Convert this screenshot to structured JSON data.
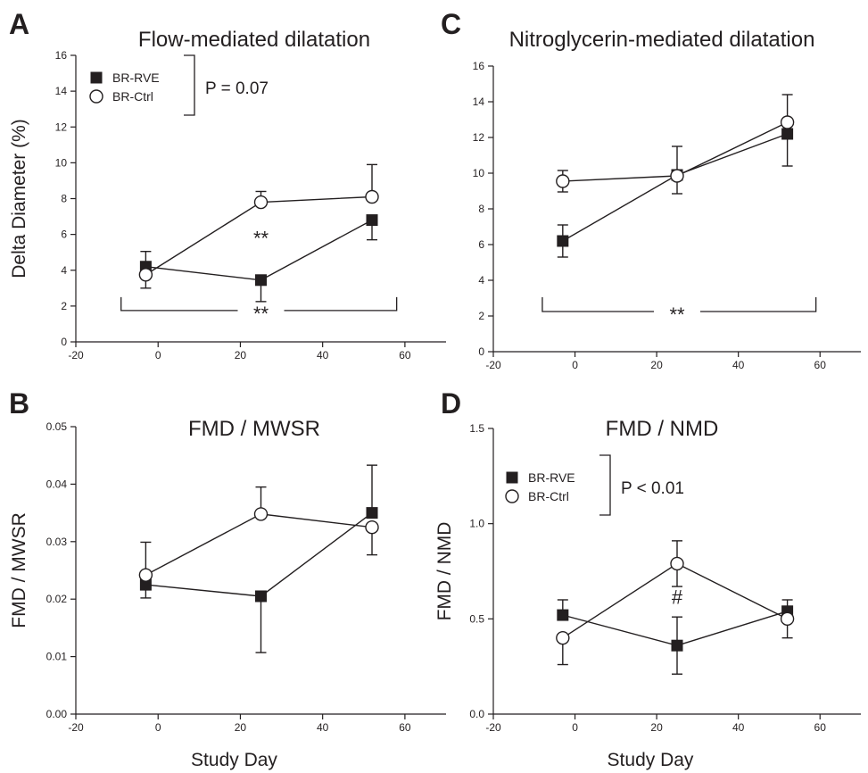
{
  "chart_data": [
    {
      "letter": "A",
      "title": "Flow-mediated dilatation",
      "type": "line",
      "ylabel": "Delta Diameter (%)",
      "xlabel": "",
      "xlim": [
        -20,
        70
      ],
      "ylim": [
        0,
        16
      ],
      "xticks": [
        -20,
        0,
        20,
        40,
        60
      ],
      "yticks": [
        0,
        2,
        4,
        6,
        8,
        10,
        12,
        14,
        16
      ],
      "ytick_labels": [
        "0",
        "2",
        "4",
        "6",
        "8",
        "10",
        "12",
        "14",
        "16"
      ],
      "series": [
        {
          "name": "BR-RVE",
          "marker": "filled-square",
          "x": [
            -3,
            25,
            52
          ],
          "y": [
            4.2,
            3.45,
            6.8
          ],
          "err_up": [
            0.85,
            0,
            0
          ],
          "err_down": [
            0,
            1.2,
            1.1
          ]
        },
        {
          "name": "BR-Ctrl",
          "marker": "open-circle",
          "x": [
            -3,
            25,
            52
          ],
          "y": [
            3.75,
            7.8,
            8.1
          ],
          "err_up": [
            0,
            0.6,
            1.8
          ],
          "err_down": [
            0.75,
            0,
            0
          ]
        }
      ],
      "legend": {
        "show": true,
        "position": "top-left",
        "stat_text": "P = 0.07"
      },
      "annotations": [
        {
          "text": "**",
          "x": 25,
          "y": 5.4
        },
        {
          "text": "**",
          "x": 25,
          "y": 0.75,
          "bracket_x": [
            -9,
            58
          ],
          "bracket_y": 1.75,
          "bracket_drop": 0.75
        }
      ]
    },
    {
      "letter": "C",
      "title": "Nitroglycerin-mediated dilatation",
      "type": "line",
      "ylabel": "",
      "xlabel": "",
      "xlim": [
        -20,
        70
      ],
      "ylim": [
        0,
        16
      ],
      "xticks": [
        -20,
        0,
        20,
        40,
        60
      ],
      "yticks": [
        0,
        2,
        4,
        6,
        8,
        10,
        12,
        14,
        16
      ],
      "ytick_labels": [
        "0",
        "2",
        "4",
        "6",
        "8",
        "10",
        "12",
        "14",
        "16"
      ],
      "series": [
        {
          "name": "BR-RVE",
          "marker": "filled-square",
          "x": [
            -3,
            25,
            52
          ],
          "y": [
            6.2,
            9.9,
            12.2
          ],
          "err_up": [
            0.9,
            1.6,
            0
          ],
          "err_down": [
            0.9,
            0,
            1.8
          ]
        },
        {
          "name": "BR-Ctrl",
          "marker": "open-circle",
          "x": [
            -3,
            25,
            52
          ],
          "y": [
            9.55,
            9.85,
            12.85
          ],
          "err_up": [
            0.6,
            0,
            1.55
          ],
          "err_down": [
            0.6,
            1.0,
            0
          ]
        }
      ],
      "legend": {
        "show": false
      },
      "annotations": [
        {
          "text": "**",
          "x": 25,
          "y": 1.8,
          "bracket_x": [
            -8,
            59
          ],
          "bracket_y": 2.25,
          "bracket_drop": 0.8
        }
      ]
    },
    {
      "letter": "B",
      "title": "FMD / MWSR",
      "type": "line",
      "ylabel": "FMD / MWSR",
      "xlabel": "Study Day",
      "xlim": [
        -20,
        70
      ],
      "ylim": [
        0,
        0.05
      ],
      "xticks": [
        -20,
        0,
        20,
        40,
        60
      ],
      "yticks": [
        0,
        0.01,
        0.02,
        0.03,
        0.04,
        0.05
      ],
      "ytick_labels": [
        "0.00",
        "0.01",
        "0.02",
        "0.03",
        "0.04",
        "0.05"
      ],
      "series": [
        {
          "name": "BR-RVE",
          "marker": "filled-square",
          "x": [
            -3,
            25,
            52
          ],
          "y": [
            0.0225,
            0.0205,
            0.035
          ],
          "err_up": [
            0,
            0,
            0.0083
          ],
          "err_down": [
            0.0023,
            0.0098,
            0
          ]
        },
        {
          "name": "BR-Ctrl",
          "marker": "open-circle",
          "x": [
            -3,
            25,
            52
          ],
          "y": [
            0.0242,
            0.0348,
            0.0325
          ],
          "err_up": [
            0.0057,
            0.0047,
            0
          ],
          "err_down": [
            0,
            0,
            0.0048
          ]
        }
      ],
      "legend": {
        "show": false
      },
      "annotations": []
    },
    {
      "letter": "D",
      "title": "FMD / NMD",
      "type": "line",
      "ylabel": "FMD / NMD",
      "xlabel": "Study Day",
      "xlim": [
        -20,
        70
      ],
      "ylim": [
        0,
        1.5
      ],
      "xticks": [
        -20,
        0,
        20,
        40,
        60
      ],
      "yticks": [
        0,
        0.5,
        1.0,
        1.5
      ],
      "ytick_labels": [
        "0.0",
        "0.5",
        "1.0",
        "1.5"
      ],
      "series": [
        {
          "name": "BR-RVE",
          "marker": "filled-square",
          "x": [
            -3,
            25,
            52
          ],
          "y": [
            0.52,
            0.36,
            0.54
          ],
          "err_up": [
            0.08,
            0.15,
            0.06
          ],
          "err_down": [
            0,
            0.15,
            0
          ]
        },
        {
          "name": "BR-Ctrl",
          "marker": "open-circle",
          "x": [
            -3,
            25,
            52
          ],
          "y": [
            0.4,
            0.79,
            0.5
          ],
          "err_up": [
            0,
            0.12,
            0
          ],
          "err_down": [
            0.14,
            0.12,
            0.1
          ]
        }
      ],
      "legend": {
        "show": true,
        "position": "top-left",
        "stat_text": "P < 0.01"
      },
      "annotations": [
        {
          "text": "#",
          "x": 25,
          "y": 0.58
        }
      ]
    }
  ]
}
